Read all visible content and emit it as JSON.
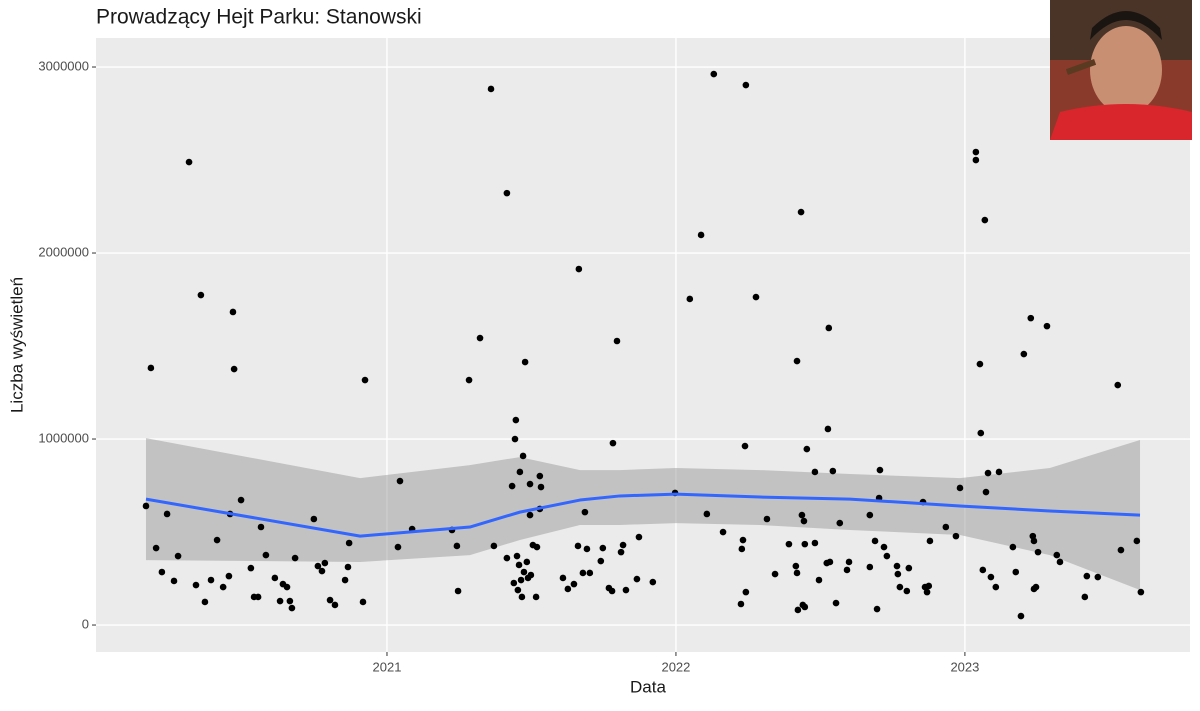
{
  "chart_data": {
    "type": "scatter",
    "title": "Prowadzący Hejt Parku: Stanowski",
    "x_label": "Data",
    "y_label": "Liczba wyświetleń",
    "xlim": [
      2019.993,
      2023.779
    ],
    "ylim": [
      -145000,
      3156000
    ],
    "xticks": [
      2021,
      2022,
      2023
    ],
    "yticks": [
      0,
      1000000,
      2000000,
      3000000
    ],
    "grid": true,
    "background": "#ebebeb",
    "grid_color": "#ffffff",
    "color": "#000000",
    "x": [
      2020.166,
      2020.183,
      2020.201,
      2020.221,
      2020.239,
      2020.263,
      2020.277,
      2020.315,
      2020.339,
      2020.356,
      2020.37,
      2020.391,
      2020.412,
      2020.433,
      2020.453,
      2020.457,
      2020.467,
      2020.471,
      2020.495,
      2020.529,
      2020.54,
      2020.554,
      2020.564,
      2020.581,
      2020.612,
      2020.63,
      2020.64,
      2020.654,
      2020.664,
      2020.671,
      2020.682,
      2020.747,
      2020.761,
      2020.775,
      2020.785,
      2020.803,
      2020.82,
      2020.855,
      2020.865,
      2020.869,
      2020.917,
      2020.924,
      2021.038,
      2021.045,
      2021.087,
      2021.225,
      2021.242,
      2021.246,
      2021.284,
      2021.322,
      2021.36,
      2021.37,
      2021.415,
      2021.415,
      2021.433,
      2021.439,
      2021.443,
      2021.446,
      2021.45,
      2021.453,
      2021.457,
      2021.46,
      2021.464,
      2021.467,
      2021.471,
      2021.474,
      2021.478,
      2021.484,
      2021.488,
      2021.495,
      2021.495,
      2021.498,
      2021.505,
      2021.516,
      2021.519,
      2021.529,
      2021.529,
      2021.533,
      2021.609,
      2021.626,
      2021.647,
      2021.661,
      2021.664,
      2021.678,
      2021.685,
      2021.692,
      2021.702,
      2021.74,
      2021.747,
      2021.768,
      2021.779,
      2021.782,
      2021.796,
      2021.81,
      2021.817,
      2021.827,
      2021.865,
      2021.872,
      2021.92,
      2021.997,
      2022.048,
      2022.087,
      2022.107,
      2022.131,
      2022.163,
      2022.225,
      2022.228,
      2022.232,
      2022.239,
      2022.242,
      2022.242,
      2022.277,
      2022.315,
      2022.343,
      2022.391,
      2022.415,
      2022.419,
      2022.419,
      2022.422,
      2022.433,
      2022.436,
      2022.439,
      2022.443,
      2022.446,
      2022.446,
      2022.453,
      2022.481,
      2022.481,
      2022.495,
      2022.522,
      2022.526,
      2022.529,
      2022.533,
      2022.543,
      2022.554,
      2022.567,
      2022.592,
      2022.599,
      2022.671,
      2022.671,
      2022.689,
      2022.696,
      2022.703,
      2022.706,
      2022.72,
      2022.73,
      2022.765,
      2022.768,
      2022.775,
      2022.799,
      2022.806,
      2022.855,
      2022.862,
      2022.869,
      2022.875,
      2022.879,
      2022.934,
      2022.969,
      2022.983,
      2023.038,
      2023.038,
      2023.052,
      2023.055,
      2023.062,
      2023.069,
      2023.073,
      2023.08,
      2023.09,
      2023.107,
      2023.118,
      2023.166,
      2023.176,
      2023.194,
      2023.204,
      2023.228,
      2023.235,
      2023.239,
      2023.239,
      2023.246,
      2023.253,
      2023.284,
      2023.318,
      2023.329,
      2023.415,
      2023.422,
      2023.46,
      2023.529,
      2023.54,
      2023.595,
      2023.609
    ],
    "values": [
      640000,
      1382000,
      414000,
      285000,
      597000,
      237000,
      371000,
      2489000,
      215000,
      1774000,
      124000,
      242000,
      457000,
      204000,
      263000,
      597000,
      1683000,
      1376000,
      672000,
      306000,
      151000,
      151000,
      527000,
      376000,
      253000,
      129000,
      220000,
      204000,
      129000,
      91000,
      360000,
      570000,
      317000,
      290000,
      333000,
      134000,
      108000,
      242000,
      312000,
      441000,
      124000,
      1317000,
      419000,
      774000,
      516000,
      511000,
      425000,
      183000,
      1317000,
      1543000,
      2882000,
      425000,
      2322000,
      360000,
      747000,
      226000,
      1000000,
      1102000,
      371000,
      188000,
      323000,
      823000,
      242000,
      151000,
      909000,
      285000,
      1414000,
      339000,
      253000,
      758000,
      591000,
      269000,
      430000,
      151000,
      419000,
      624000,
      801000,
      742000,
      253000,
      194000,
      220000,
      425000,
      1914000,
      280000,
      607000,
      409000,
      280000,
      344000,
      414000,
      199000,
      183000,
      978000,
      1527000,
      392000,
      430000,
      188000,
      247000,
      473000,
      231000,
      710000,
      1753000,
      2097000,
      597000,
      2962000,
      500000,
      113000,
      409000,
      457000,
      962000,
      177000,
      2903000,
      1763000,
      570000,
      274000,
      435000,
      317000,
      1419000,
      280000,
      81000,
      2220000,
      591000,
      108000,
      559000,
      435000,
      97000,
      946000,
      441000,
      823000,
      242000,
      333000,
      1054000,
      1597000,
      339000,
      828000,
      118000,
      548000,
      296000,
      339000,
      591000,
      312000,
      452000,
      86000,
      683000,
      833000,
      419000,
      371000,
      317000,
      274000,
      204000,
      183000,
      306000,
      661000,
      204000,
      177000,
      210000,
      452000,
      527000,
      478000,
      737000,
      2543000,
      2500000,
      1403000,
      1032000,
      296000,
      2177000,
      715000,
      817000,
      258000,
      204000,
      823000,
      419000,
      285000,
      48000,
      1457000,
      1650000,
      478000,
      452000,
      194000,
      204000,
      392000,
      1607000,
      376000,
      339000,
      151000,
      263000,
      258000,
      1290000,
      403000,
      452000,
      177000
    ],
    "smooth": {
      "color": "#3366ff",
      "band_color": "#999999",
      "x": [
        2020.166,
        2020.907,
        2021.287,
        2021.46,
        2021.668,
        2021.806,
        2022.0,
        2022.291,
        2022.602,
        2022.983,
        2023.294,
        2023.606
      ],
      "values": [
        677000,
        478000,
        527000,
        607000,
        672000,
        694000,
        704000,
        688000,
        677000,
        640000,
        613000,
        591000
      ],
      "lower": [
        349000,
        339000,
        376000,
        457000,
        538000,
        538000,
        548000,
        538000,
        511000,
        484000,
        376000,
        188000
      ],
      "upper": [
        1005000,
        790000,
        860000,
        903000,
        833000,
        833000,
        844000,
        833000,
        812000,
        790000,
        844000,
        995000
      ]
    }
  }
}
